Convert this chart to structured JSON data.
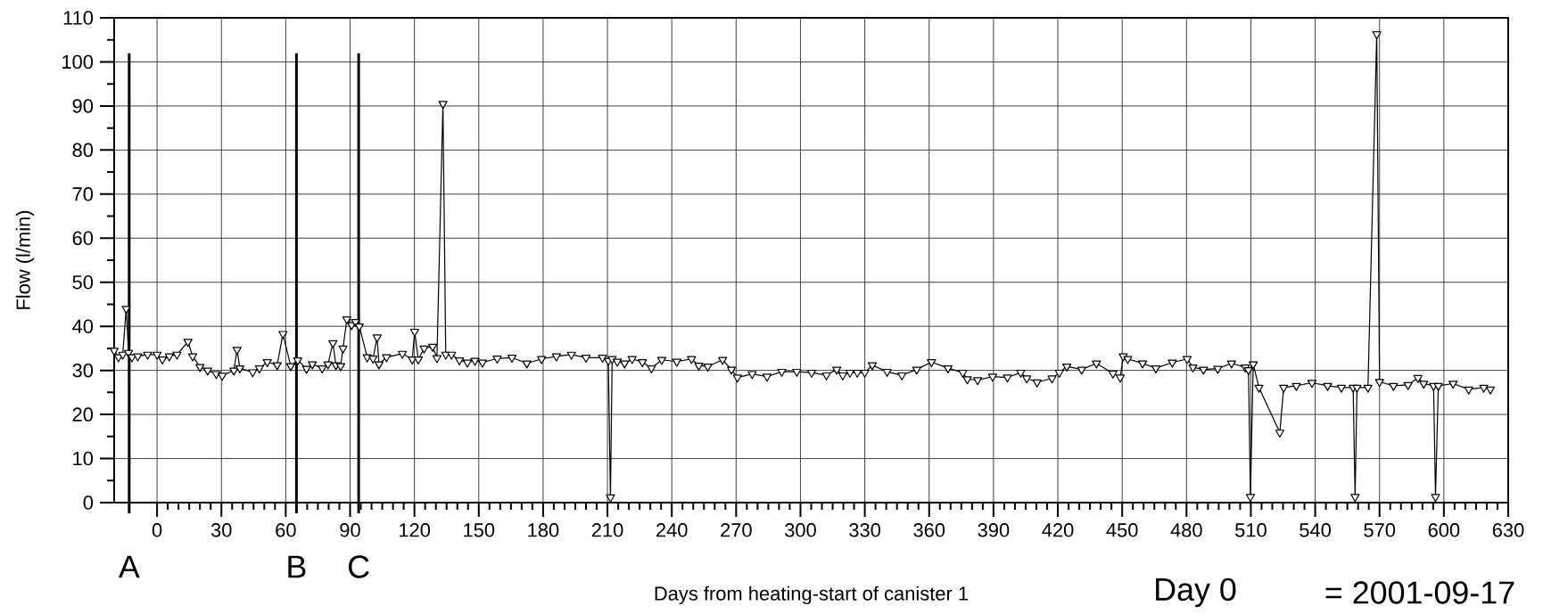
{
  "chart_data": {
    "type": "line",
    "xlabel": "Days from heating-start of canister 1",
    "ylabel": "Flow (l/min)",
    "annotations": [
      "Day 0",
      "= 2001-09-17"
    ],
    "x": [
      -20,
      -18,
      -16,
      -14.4,
      -13.3,
      -11.7,
      -9,
      -4.4,
      0,
      2.5,
      5.7,
      9.3,
      14.4,
      16.6,
      20,
      23.6,
      27.6,
      30.4,
      35.8,
      37.3,
      38.6,
      44.6,
      47.7,
      51.4,
      56,
      58.7,
      62.3,
      65.6,
      69.7,
      72.4,
      77,
      79.7,
      82,
      83.4,
      85.6,
      86.7,
      88.5,
      90.7,
      92.5,
      94.3,
      98,
      100.7,
      102.6,
      103.5,
      107,
      114.4,
      119,
      120.1,
      121.8,
      124.5,
      128.5,
      130.5,
      133.3,
      134.6,
      137.3,
      141,
      144.7,
      148.2,
      151.7,
      158.6,
      165.5,
      172.4,
      179.3,
      186.2,
      193.2,
      200,
      207.7,
      210.4,
      211.4,
      212.2,
      214.6,
      218,
      221.5,
      226.3,
      230.5,
      235.3,
      242.3,
      249.2,
      252.6,
      256.8,
      263.7,
      267.8,
      270.6,
      277.5,
      284.4,
      291.3,
      298.3,
      305.2,
      312.1,
      316.9,
      319.7,
      323.1,
      326.5,
      330,
      333.5,
      340.4,
      347.3,
      354.2,
      361.1,
      368.8,
      375.7,
      377.8,
      382.6,
      389.6,
      396.5,
      402.7,
      405.5,
      410.3,
      417.3,
      420.7,
      424.2,
      431.1,
      438,
      445.7,
      449.1,
      450.5,
      452.6,
      459.5,
      465.7,
      473.4,
      480.3,
      483,
      487.9,
      494.6,
      501,
      507.4,
      508.9,
      509.8,
      511.1,
      513.8,
      523.5,
      525.3,
      531.2,
      538.5,
      545.8,
      552.2,
      557.7,
      558.6,
      559.5,
      564.6,
      568.7,
      570,
      576.5,
      583.3,
      587.9,
      590.6,
      595.2,
      596.1,
      597.4,
      604.3,
      611.6,
      618.6,
      621.7
    ],
    "series": [
      {
        "color": "#000000",
        "values": [
          34.5,
          33,
          33.6,
          44,
          34,
          33,
          33.2,
          33.6,
          33.6,
          32.5,
          33.2,
          33.6,
          36.5,
          33.2,
          30.8,
          30,
          29.2,
          28.8,
          30,
          34.7,
          30.5,
          29.6,
          30.5,
          31.9,
          31.2,
          38.3,
          31,
          32.3,
          30.4,
          31.4,
          30.5,
          31.4,
          36.2,
          31.2,
          31,
          35,
          41.6,
          40.3,
          41,
          40,
          33,
          32.7,
          37.5,
          31.4,
          33,
          33.8,
          32.5,
          38.8,
          32.5,
          35,
          35.4,
          32.8,
          90.5,
          33.6,
          33.6,
          32.3,
          31.8,
          32.2,
          31.8,
          32.7,
          32.9,
          31.6,
          32.6,
          33.2,
          33.6,
          32.9,
          32.9,
          32.2,
          1.2,
          32.6,
          32,
          31.6,
          32.6,
          31.9,
          30.5,
          32.4,
          32,
          32.6,
          31.1,
          30.9,
          32.4,
          30.2,
          28.4,
          29.2,
          28.6,
          29.7,
          29.7,
          29.5,
          28.9,
          30.2,
          28.9,
          29.5,
          29.5,
          29.5,
          31.2,
          29.7,
          28.9,
          30.2,
          31.9,
          30.5,
          29.5,
          28,
          27.8,
          28.6,
          28.4,
          29.5,
          28.2,
          27.3,
          28.2,
          29.5,
          30.9,
          30.2,
          31.6,
          29.3,
          28.4,
          33.2,
          32.6,
          31.6,
          30.5,
          31.8,
          32.6,
          30.7,
          30.2,
          30.4,
          31.6,
          30.7,
          30.1,
          1.3,
          31.4,
          26.1,
          15.9,
          26.1,
          26.5,
          27.2,
          26.5,
          26.1,
          26.1,
          1.3,
          26.1,
          26.1,
          106.3,
          27.4,
          26.5,
          26.7,
          28.3,
          27,
          26.5,
          1.3,
          26.5,
          27,
          25.7,
          26.1,
          25.7
        ]
      }
    ],
    "xlim": [
      -20,
      630
    ],
    "xticks": [
      0,
      30,
      60,
      90,
      120,
      150,
      180,
      210,
      240,
      270,
      300,
      330,
      360,
      390,
      420,
      450,
      480,
      510,
      540,
      570,
      600,
      630
    ],
    "ylim": [
      0,
      110
    ],
    "yticks": [
      0,
      10,
      20,
      30,
      40,
      50,
      60,
      70,
      80,
      90,
      100,
      110
    ],
    "grid": true,
    "marker": "triangle",
    "line_style": "solid",
    "ref_lines": [
      {
        "axis": "x",
        "value": -13,
        "label": "A"
      },
      {
        "axis": "x",
        "value": 65,
        "label": "B"
      },
      {
        "axis": "x",
        "value": 94,
        "label": "C"
      }
    ]
  }
}
